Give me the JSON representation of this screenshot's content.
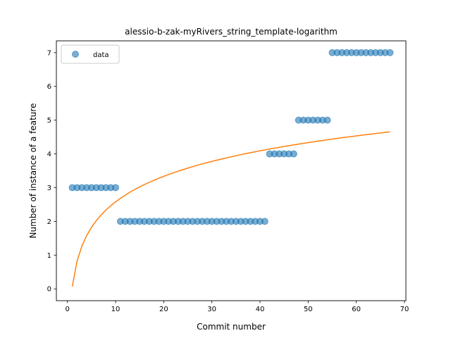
{
  "chart_data": {
    "type": "scatter",
    "title": "alessio-b-zak-myRivers_string_template-logarithm",
    "xlabel": "Commit number",
    "ylabel": "Number of instance of a feature",
    "xlim": [
      -2.3,
      70.3
    ],
    "ylim": [
      -0.35,
      7.35
    ],
    "xticks": [
      0,
      10,
      20,
      30,
      40,
      50,
      60,
      70
    ],
    "yticks": [
      0,
      1,
      2,
      3,
      4,
      5,
      6,
      7
    ],
    "grid": false,
    "legend": {
      "placement": "upper-left",
      "entries": [
        "data"
      ]
    },
    "colors": {
      "scatter": "#1f77b4",
      "fit": "#ff7f0e"
    },
    "series": [
      {
        "name": "data",
        "kind": "scatter",
        "x": [
          1,
          2,
          3,
          4,
          5,
          6,
          7,
          8,
          9,
          10,
          11,
          12,
          13,
          14,
          15,
          16,
          17,
          18,
          19,
          20,
          21,
          22,
          23,
          24,
          25,
          26,
          27,
          28,
          29,
          30,
          31,
          32,
          33,
          34,
          35,
          36,
          37,
          38,
          39,
          40,
          41,
          42,
          43,
          44,
          45,
          46,
          47,
          48,
          49,
          50,
          51,
          52,
          53,
          54,
          55,
          56,
          57,
          58,
          59,
          60,
          61,
          62,
          63,
          64,
          65,
          66,
          67
        ],
        "y": [
          3,
          3,
          3,
          3,
          3,
          3,
          3,
          3,
          3,
          3,
          2,
          2,
          2,
          2,
          2,
          2,
          2,
          2,
          2,
          2,
          2,
          2,
          2,
          2,
          2,
          2,
          2,
          2,
          2,
          2,
          2,
          2,
          2,
          2,
          2,
          2,
          2,
          2,
          2,
          2,
          2,
          4,
          4,
          4,
          4,
          4,
          4,
          5,
          5,
          5,
          5,
          5,
          5,
          5,
          7,
          7,
          7,
          7,
          7,
          7,
          7,
          7,
          7,
          7,
          7,
          7,
          7
        ]
      },
      {
        "kind": "line",
        "fit": {
          "model": "a + b*ln(x)",
          "a": 0.07,
          "b": 1.09
        },
        "x_range": [
          1,
          67
        ]
      }
    ]
  }
}
